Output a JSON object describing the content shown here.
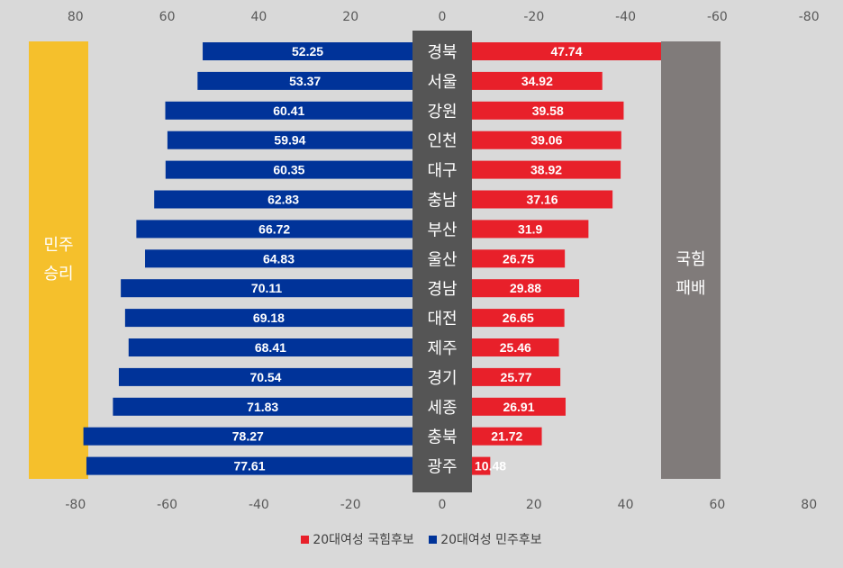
{
  "chart_data": {
    "type": "bar",
    "orientation": "horizontal-diverging",
    "categories": [
      "경북",
      "서울",
      "강원",
      "인천",
      "대구",
      "충남",
      "부산",
      "울산",
      "경남",
      "대전",
      "제주",
      "경기",
      "세종",
      "충북",
      "광주"
    ],
    "series": [
      {
        "name": "20대여성 민주후보",
        "color": "#003399",
        "side": "left",
        "values": [
          52.25,
          53.37,
          60.41,
          59.94,
          60.35,
          62.83,
          66.72,
          64.83,
          70.11,
          69.18,
          68.41,
          70.54,
          71.83,
          78.27,
          77.61
        ]
      },
      {
        "name": "20대여성 국힘후보",
        "color": "#e8202a",
        "side": "right",
        "values": [
          47.74,
          34.92,
          39.58,
          39.06,
          38.92,
          37.16,
          31.9,
          26.75,
          29.88,
          26.65,
          25.46,
          25.77,
          26.91,
          21.72,
          10.48
        ]
      }
    ],
    "top_axis_ticks": [
      "80",
      "60",
      "40",
      "20",
      "0",
      "-20",
      "-40",
      "-60",
      "-80"
    ],
    "bottom_axis_ticks": [
      "-80",
      "-60",
      "-40",
      "-20",
      "0",
      "20",
      "40",
      "60",
      "80"
    ],
    "xlim": [
      -80,
      80
    ],
    "left_panel": {
      "lines": [
        "민주",
        "승리"
      ],
      "color": "#f5c02c"
    },
    "right_panel": {
      "lines": [
        "국힘",
        "패배"
      ],
      "color": "#807b7a"
    },
    "center_band_color": "#555555",
    "legend": {
      "position": "bottom",
      "items": [
        "20대여성 국힘후보",
        "20대여성 민주후보"
      ]
    }
  }
}
